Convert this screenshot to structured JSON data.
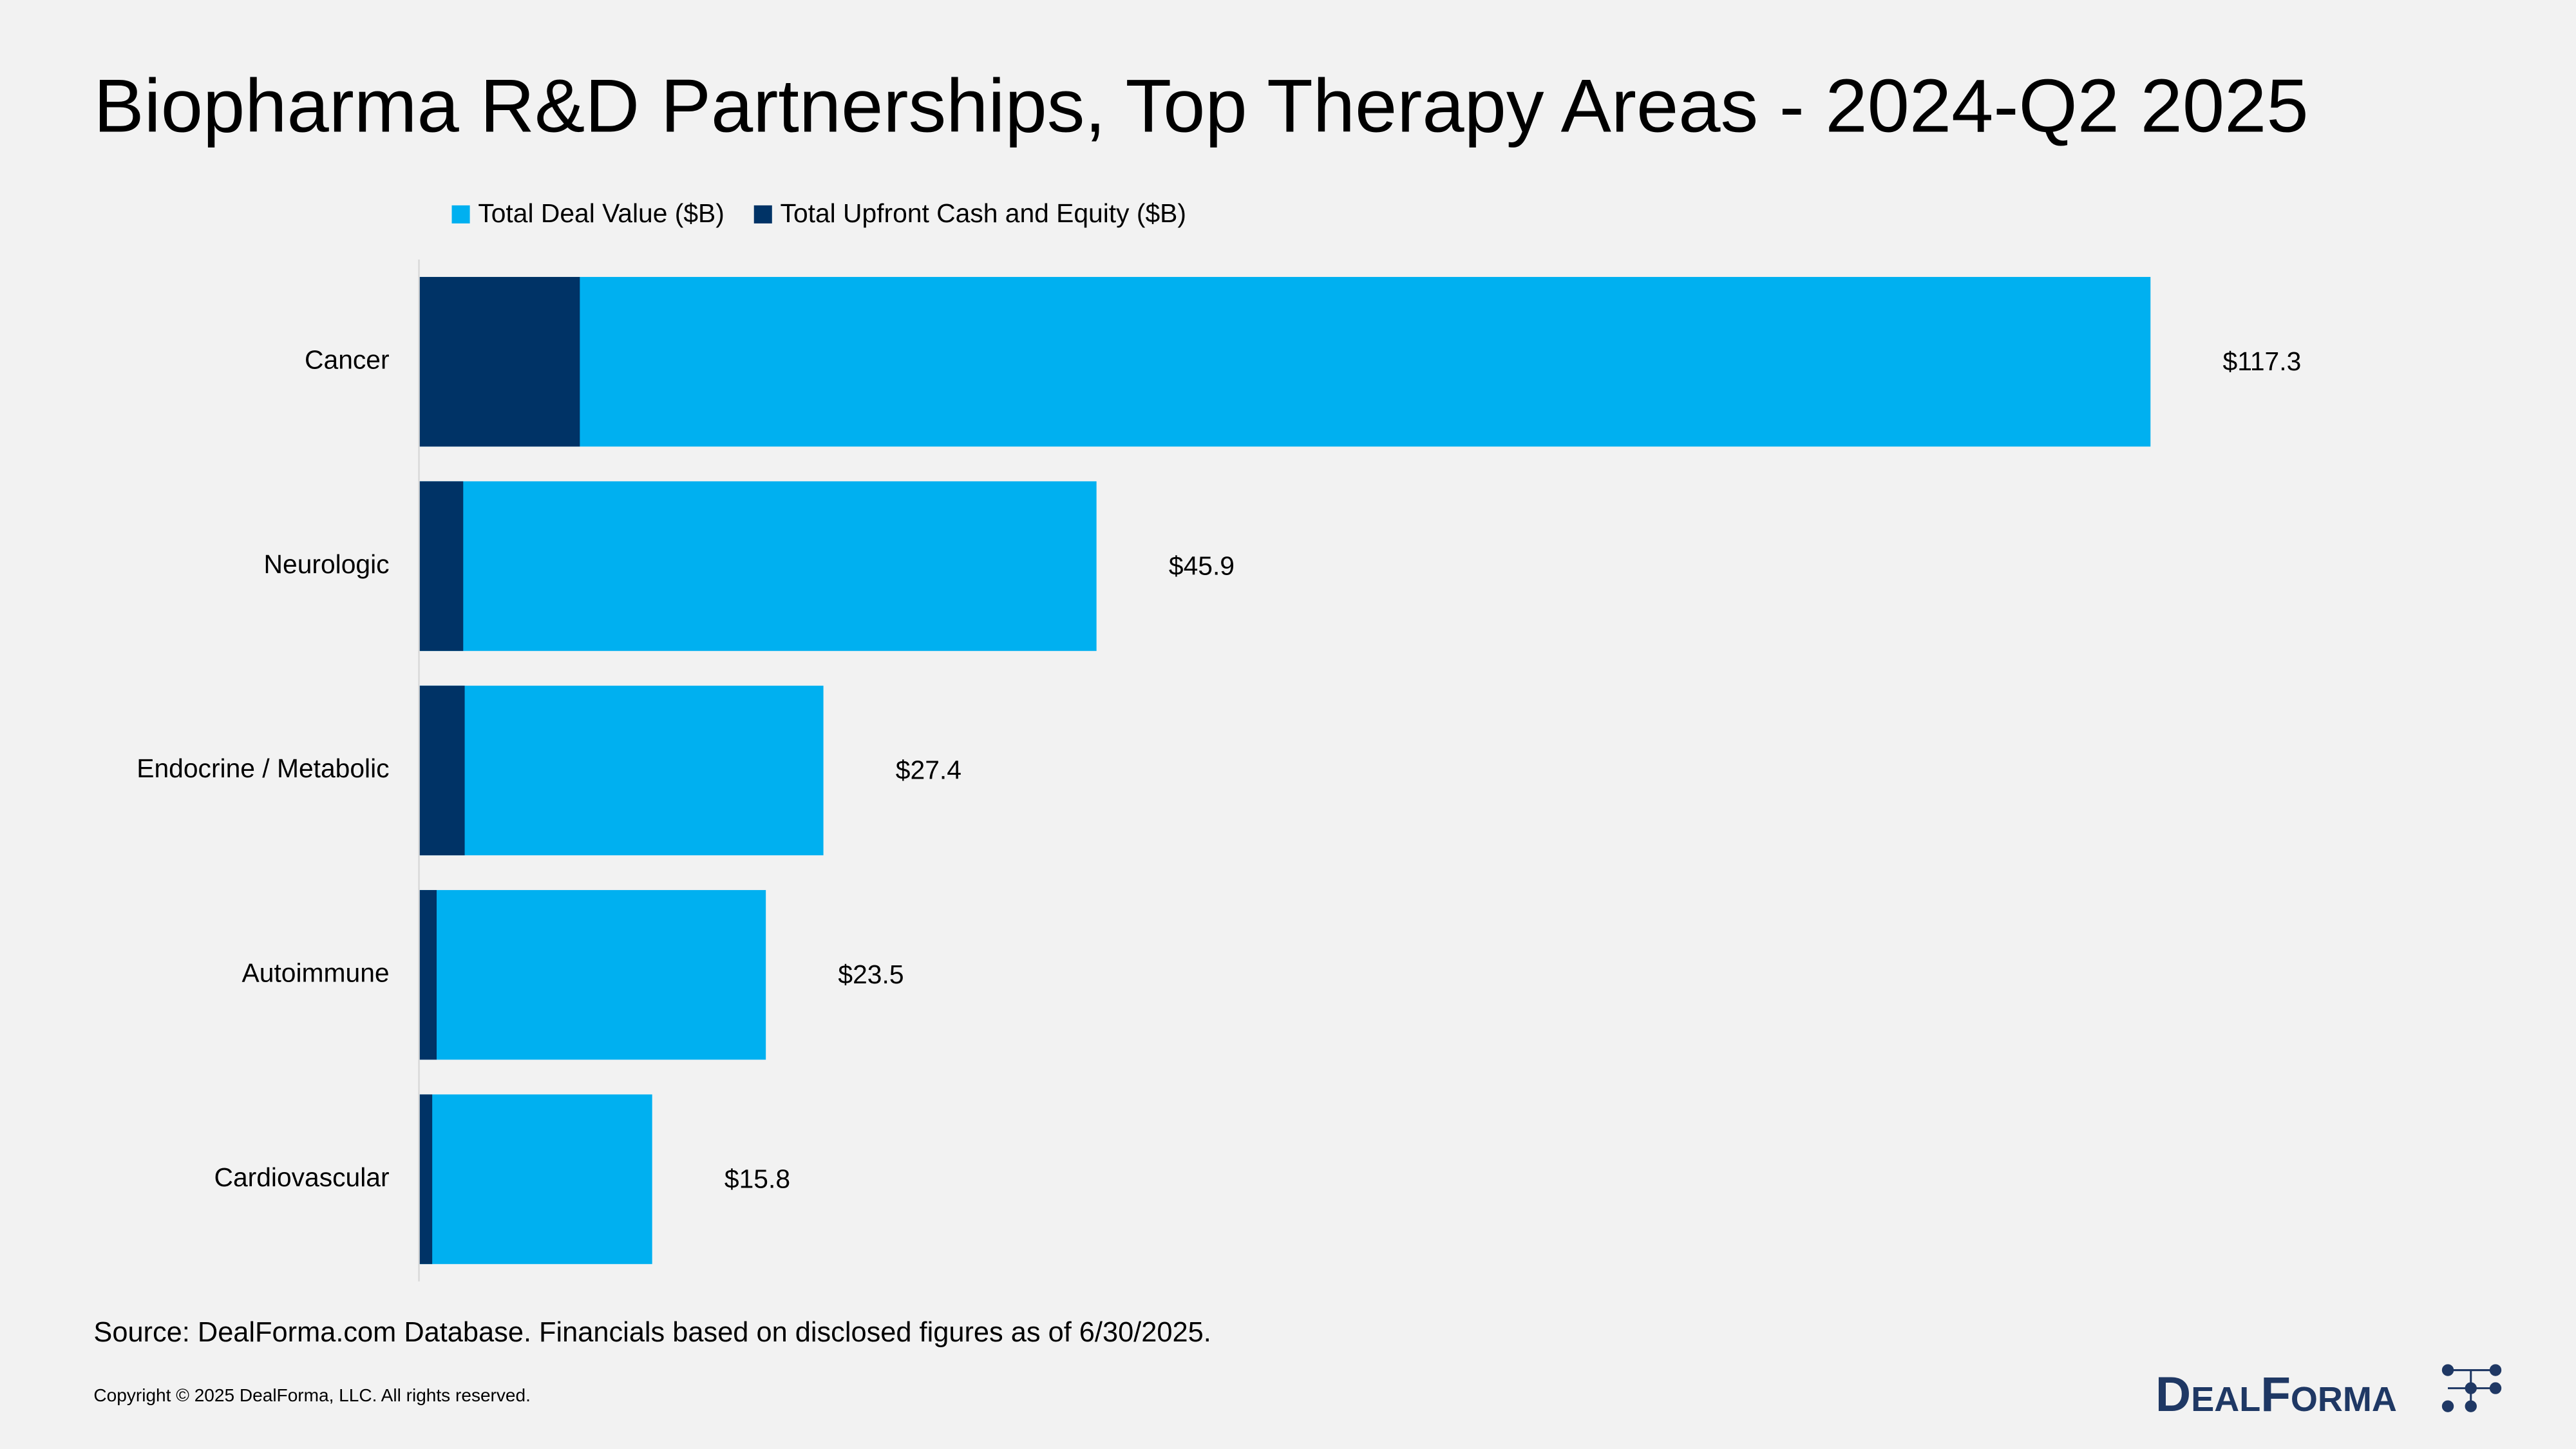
{
  "chart_data": {
    "type": "bar",
    "orientation": "horizontal",
    "title": "Biopharma R&D Partnerships, Top Therapy Areas - 2024-Q2 2025",
    "categories": [
      "Cancer",
      "Neurologic",
      "Endocrine / Metabolic",
      "Autoimmune",
      "Cardiovascular"
    ],
    "series": [
      {
        "name": "Total Deal Value ($B)",
        "color": "#00b0f0",
        "values": [
          117.3,
          45.9,
          27.4,
          23.5,
          15.8
        ],
        "value_labels": [
          "$117.3",
          "$45.9",
          "$27.4",
          "$23.5",
          "$15.8"
        ]
      },
      {
        "name": "Total Upfront Cash and Equity ($B)",
        "color": "#003366",
        "values": [
          10.9,
          3.0,
          3.1,
          1.2,
          0.9
        ]
      }
    ],
    "legend": "top",
    "grid": false,
    "source": "Source: DealForma.com Database. Financials based on disclosed figures as of 6/30/2025.",
    "copyright": "Copyright © 2025 DealForma, LLC. All rights reserved.",
    "logo": "DealForma"
  }
}
